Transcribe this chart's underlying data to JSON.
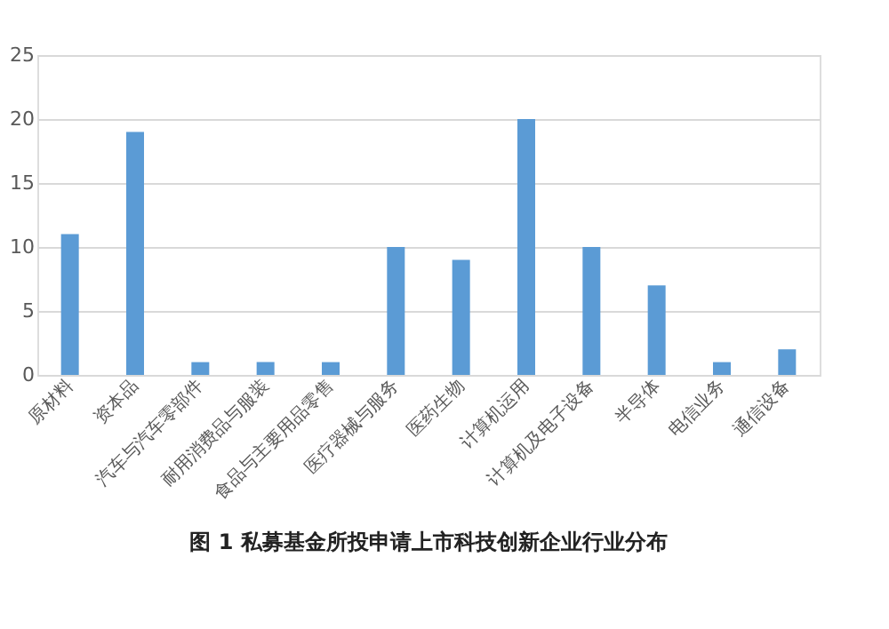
{
  "chart_data": {
    "type": "bar",
    "title": "图 1  私募基金所投申请上市科技创新企业行业分布",
    "categories": [
      "原材料",
      "资本品",
      "汽车与汽车零部件",
      "耐用消费品与服装",
      "食品与主要用品零售",
      "医疗器械与服务",
      "医药生物",
      "计算机运用",
      "计算机及电子设备",
      "半导体",
      "电信业务",
      "通信设备"
    ],
    "values": [
      11,
      19,
      1,
      1,
      1,
      10,
      9,
      20,
      10,
      7,
      1,
      2
    ],
    "color": "#5b9bd5",
    "ylim": [
      0,
      25
    ],
    "yticks": [
      0,
      5,
      10,
      15,
      20,
      25
    ],
    "grid": "y"
  }
}
